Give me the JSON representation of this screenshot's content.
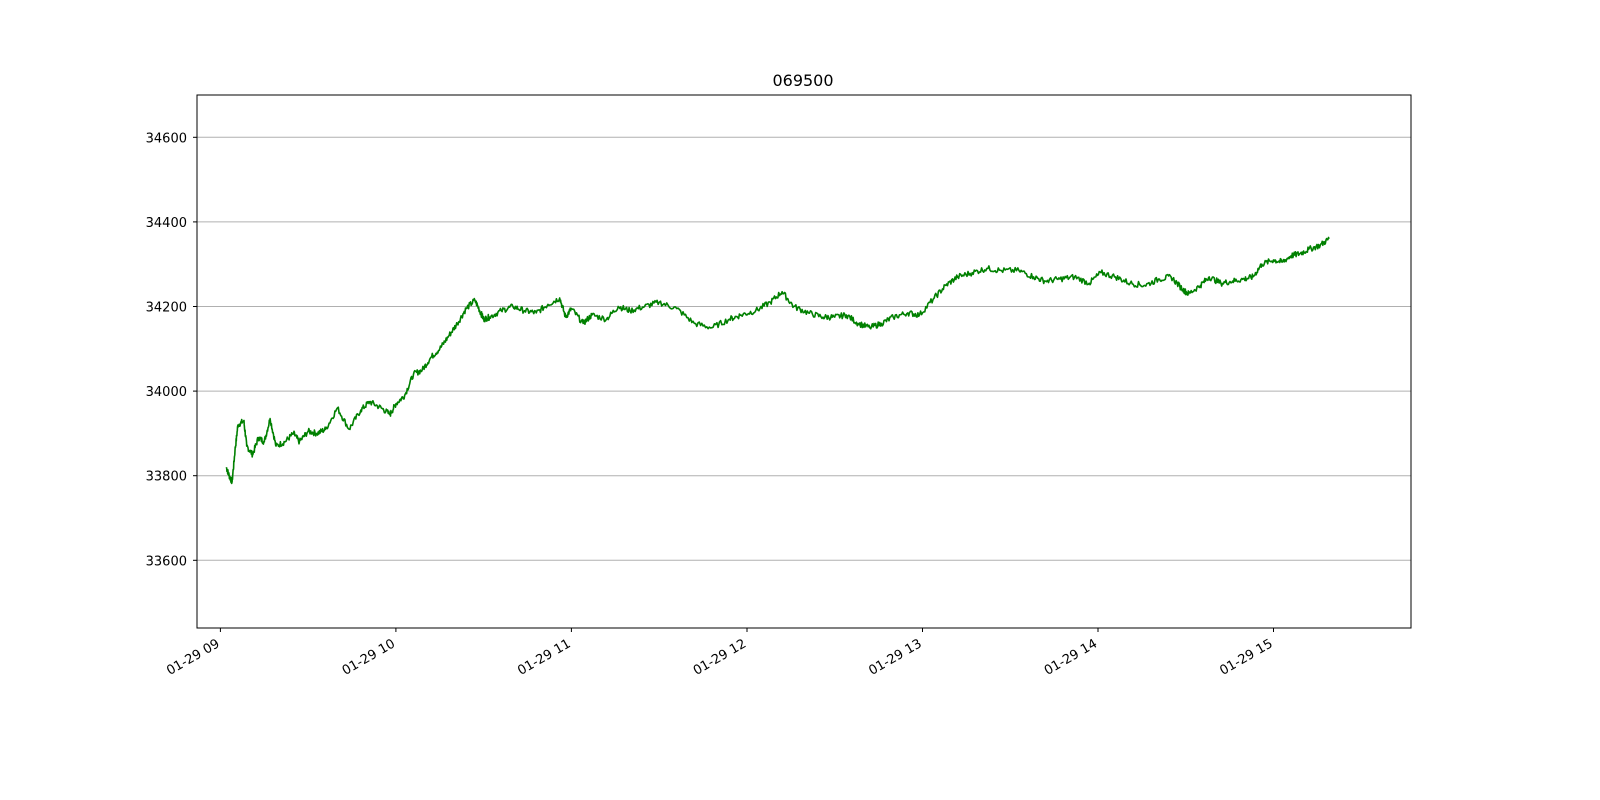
{
  "chart_data": {
    "type": "line",
    "title": "069500",
    "xlabel": "",
    "ylabel": "",
    "x_ticks": [
      "01-29 09",
      "01-29 10",
      "01-29 11",
      "01-29 12",
      "01-29 13",
      "01-29 14",
      "01-29 15"
    ],
    "y_ticks": [
      33600,
      33800,
      34000,
      34200,
      34400,
      34600
    ],
    "xlim": [
      "01-29 08:52",
      "01-29 15:47"
    ],
    "ylim": [
      33440,
      34700
    ],
    "grid": "horizontal",
    "series": [
      {
        "color": "#008000",
        "x": [
          "09:02",
          "09:03",
          "09:04",
          "09:05",
          "09:06",
          "09:08",
          "09:09",
          "09:11",
          "09:13",
          "09:15",
          "09:17",
          "09:19",
          "09:22",
          "09:25",
          "09:27",
          "09:30",
          "09:33",
          "09:36",
          "09:40",
          "09:44",
          "09:48",
          "09:51",
          "09:55",
          "09:58",
          "10:00",
          "10:03",
          "10:06",
          "10:09",
          "10:12",
          "10:15",
          "10:18",
          "10:21",
          "10:24",
          "10:27",
          "10:29",
          "10:30",
          "10:32",
          "10:36",
          "10:40",
          "10:44",
          "10:48",
          "10:52",
          "10:56",
          "10:58",
          "11:00",
          "11:04",
          "11:07",
          "11:12",
          "11:16",
          "11:20",
          "11:25",
          "11:30",
          "11:36",
          "11:42",
          "11:48",
          "11:54",
          "11:58",
          "12:03",
          "12:08",
          "12:12",
          "12:16",
          "12:21",
          "12:26",
          "12:30",
          "12:34",
          "12:38",
          "12:42",
          "12:46",
          "12:50",
          "12:55",
          "12:59",
          "13:04",
          "13:08",
          "13:12",
          "13:17",
          "13:22",
          "13:27",
          "13:33",
          "13:38",
          "13:42",
          "13:47",
          "13:52",
          "13:57",
          "14:01",
          "14:06",
          "14:11",
          "14:16",
          "14:21",
          "14:25",
          "14:29",
          "14:31",
          "14:35",
          "14:38",
          "14:42",
          "14:46",
          "14:50",
          "14:53",
          "14:56",
          "15:00",
          "15:03",
          "15:06",
          "15:09",
          "15:12",
          "15:16",
          "15:19"
        ],
        "values": [
          33820,
          33800,
          33785,
          33860,
          33920,
          33930,
          33870,
          33850,
          33890,
          33880,
          33935,
          33870,
          33880,
          33900,
          33880,
          33905,
          33900,
          33910,
          33960,
          33910,
          33955,
          33975,
          33960,
          33945,
          33970,
          33990,
          34040,
          34050,
          34080,
          34100,
          34130,
          34160,
          34195,
          34215,
          34185,
          34170,
          34175,
          34190,
          34200,
          34190,
          34185,
          34205,
          34220,
          34175,
          34195,
          34160,
          34180,
          34170,
          34200,
          34190,
          34200,
          34210,
          34195,
          34160,
          34150,
          34170,
          34180,
          34190,
          34210,
          34235,
          34200,
          34185,
          34175,
          34175,
          34180,
          34160,
          34150,
          34160,
          34175,
          34185,
          34180,
          34220,
          34250,
          34270,
          34280,
          34290,
          34285,
          34285,
          34270,
          34260,
          34265,
          34270,
          34255,
          34280,
          34270,
          34255,
          34250,
          34265,
          34270,
          34240,
          34230,
          34250,
          34270,
          34255,
          34260,
          34265,
          34270,
          34300,
          34310,
          34305,
          34320,
          34325,
          34335,
          34345,
          34360
        ]
      }
    ]
  }
}
